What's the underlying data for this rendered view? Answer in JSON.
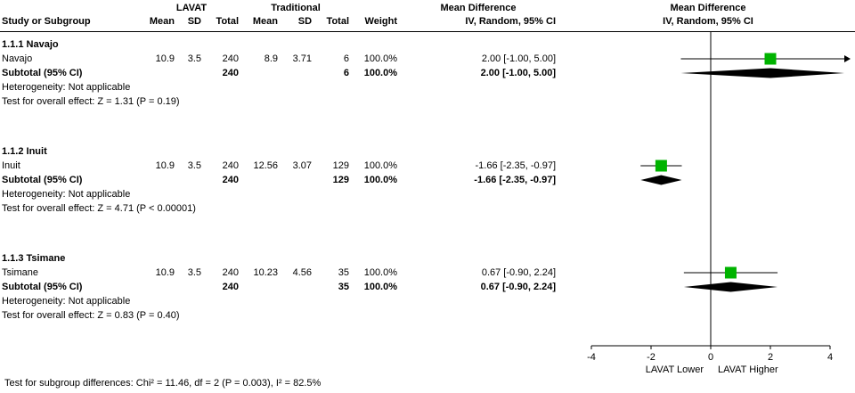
{
  "header": {
    "group1": "LAVAT",
    "group2": "Traditional",
    "md": "Mean Difference",
    "study": "Study or Subgroup",
    "mean": "Mean",
    "sd": "SD",
    "total": "Total",
    "weight": "Weight",
    "ci": "IV, Random, 95% CI"
  },
  "subgroups": [
    {
      "title": "1.1.1 Navajo",
      "study": {
        "name": "Navajo",
        "mean1": "10.9",
        "sd1": "3.5",
        "total1": "240",
        "mean2": "8.9",
        "sd2": "3.71",
        "total2": "6",
        "weight": "100.0%",
        "ci": "2.00 [-1.00, 5.00]"
      },
      "subtotal": {
        "label": "Subtotal (95% CI)",
        "total1": "240",
        "total2": "6",
        "weight": "100.0%",
        "ci": "2.00 [-1.00, 5.00]"
      },
      "heterogeneity": "Heterogeneity: Not applicable",
      "overall_effect": "Test for overall effect: Z = 1.31 (P = 0.19)"
    },
    {
      "title": "1.1.2 Inuit",
      "study": {
        "name": "Inuit",
        "mean1": "10.9",
        "sd1": "3.5",
        "total1": "240",
        "mean2": "12.56",
        "sd2": "3.07",
        "total2": "129",
        "weight": "100.0%",
        "ci": "-1.66 [-2.35, -0.97]"
      },
      "subtotal": {
        "label": "Subtotal (95% CI)",
        "total1": "240",
        "total2": "129",
        "weight": "100.0%",
        "ci": "-1.66 [-2.35, -0.97]"
      },
      "heterogeneity": "Heterogeneity: Not applicable",
      "overall_effect": "Test for overall effect: Z = 4.71 (P < 0.00001)"
    },
    {
      "title": "1.1.3 Tsimane",
      "study": {
        "name": "Tsimane",
        "mean1": "10.9",
        "sd1": "3.5",
        "total1": "240",
        "mean2": "10.23",
        "sd2": "4.56",
        "total2": "35",
        "weight": "100.0%",
        "ci": "0.67 [-0.90, 2.24]"
      },
      "subtotal": {
        "label": "Subtotal (95% CI)",
        "total1": "240",
        "total2": "35",
        "weight": "100.0%",
        "ci": "0.67 [-0.90, 2.24]"
      },
      "heterogeneity": "Heterogeneity: Not applicable",
      "overall_effect": "Test for overall effect: Z = 0.83 (P = 0.40)"
    }
  ],
  "footer": "Test for subgroup differences: Chi² = 11.46, df = 2 (P = 0.003), I² = 82.5%",
  "colors": {
    "square": "#00b300",
    "diamond": "#000000",
    "line": "#000000",
    "text": "#000000"
  },
  "chart_data": {
    "type": "forest",
    "effect_label": "Mean Difference",
    "method": "IV, Random, 95% CI",
    "axis": {
      "min": -4,
      "max": 4,
      "ticks": [
        -4,
        -2,
        0,
        2,
        4
      ],
      "label_lower": "LAVAT Lower",
      "label_higher": "LAVAT Higher"
    },
    "groups": [
      {
        "name": "1.1.1 Navajo",
        "study": {
          "label": "Navajo",
          "est": 2.0,
          "lo": -1.0,
          "hi": 5.0,
          "weight_pct": 100.0
        },
        "subtotal": {
          "est": 2.0,
          "lo": -1.0,
          "hi": 5.0
        }
      },
      {
        "name": "1.1.2 Inuit",
        "study": {
          "label": "Inuit",
          "est": -1.66,
          "lo": -2.35,
          "hi": -0.97,
          "weight_pct": 100.0
        },
        "subtotal": {
          "est": -1.66,
          "lo": -2.35,
          "hi": -0.97
        }
      },
      {
        "name": "1.1.3 Tsimane",
        "study": {
          "label": "Tsimane",
          "est": 0.67,
          "lo": -0.9,
          "hi": 2.24,
          "weight_pct": 100.0
        },
        "subtotal": {
          "est": 0.67,
          "lo": -0.9,
          "hi": 2.24
        }
      }
    ]
  }
}
